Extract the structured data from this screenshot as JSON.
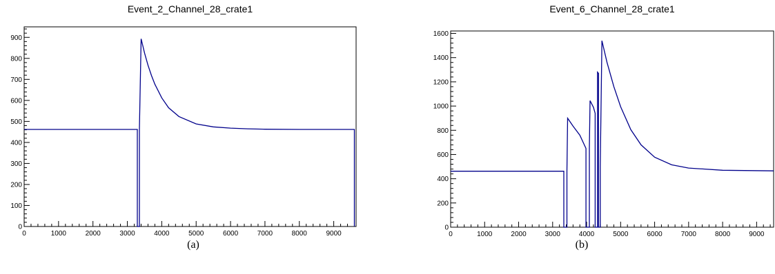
{
  "chart_data": [
    {
      "type": "line",
      "title": "Event_2_Channel_28_crate1",
      "caption": "(a)",
      "xlabel": "",
      "ylabel": "",
      "xlim": [
        0,
        9650
      ],
      "ylim": [
        0,
        950
      ],
      "grid": false,
      "line_color": "#00008b",
      "x_ticks": [
        0,
        1000,
        2000,
        3000,
        4000,
        5000,
        6000,
        7000,
        8000,
        9000
      ],
      "y_ticks": [
        0,
        100,
        200,
        300,
        400,
        500,
        600,
        700,
        800,
        900
      ],
      "series": [
        {
          "x": [
            0,
            3290,
            3290,
            3350,
            3350,
            3400,
            3500,
            3600,
            3700,
            3800,
            4000,
            4200,
            4500,
            5000,
            5500,
            6000,
            6500,
            7000,
            8000,
            9600,
            9600
          ],
          "y": [
            462,
            462,
            0,
            0,
            462,
            893,
            825,
            768,
            719,
            677,
            612,
            565,
            523,
            488,
            474,
            468,
            465,
            463,
            462,
            462,
            0
          ]
        }
      ]
    },
    {
      "type": "line",
      "title": "Event_6_Channel_28_crate1",
      "caption": "(b)",
      "xlabel": "",
      "ylabel": "",
      "xlim": [
        0,
        9500
      ],
      "ylim": [
        0,
        1620
      ],
      "grid": false,
      "line_color": "#00008b",
      "x_ticks": [
        0,
        1000,
        2000,
        3000,
        4000,
        5000,
        6000,
        7000,
        8000,
        9000
      ],
      "y_ticks": [
        0,
        200,
        400,
        600,
        800,
        1000,
        1200,
        1400,
        1600
      ],
      "series": [
        {
          "x": [
            0,
            3330,
            3330,
            3420,
            3420,
            3440,
            3600,
            3800,
            3980,
            3980,
            4080,
            4080,
            4100,
            4200,
            4250,
            4250,
            4320,
            4320,
            4350,
            4350,
            4400,
            4400,
            4450,
            4600,
            4800,
            5000,
            5300,
            5600,
            6000,
            6500,
            7000,
            8000,
            9500
          ],
          "y": [
            462,
            462,
            0,
            0,
            462,
            900,
            835,
            760,
            650,
            0,
            0,
            650,
            1045,
            990,
            940,
            0,
            0,
            1280,
            1270,
            0,
            0,
            500,
            1540,
            1360,
            1160,
            995,
            805,
            680,
            578,
            515,
            488,
            470,
            465
          ]
        }
      ]
    }
  ]
}
